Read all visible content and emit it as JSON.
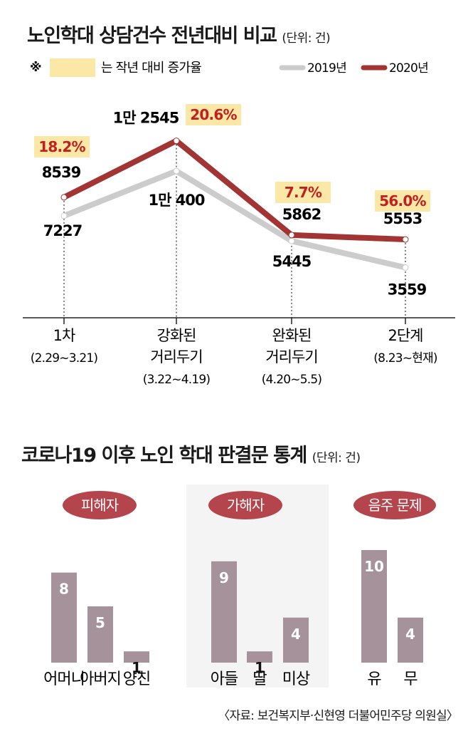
{
  "chart_data": [
    {
      "type": "line",
      "title": "노인학대 상담건수 전년대비 비교",
      "unit": "(단위: 건)",
      "note_symbol": "※",
      "note_text": "는 작년 대비 증가율",
      "categories": [
        [
          "1차",
          "(2.29~3.21)"
        ],
        [
          "강화된",
          "거리두기",
          "(3.22~4.19)"
        ],
        [
          "완화된",
          "거리두기",
          "(4.20~5.5)"
        ],
        [
          "2단계",
          "(8.23~현재)"
        ]
      ],
      "series": [
        {
          "name": "2019년",
          "values": [
            7227,
            10400,
            5445,
            3559
          ],
          "labels": [
            "7227",
            "1만 400",
            "5445",
            "3559"
          ],
          "color": "#cccccc"
        },
        {
          "name": "2020년",
          "values": [
            8539,
            12545,
            5862,
            5553
          ],
          "labels": [
            "8539",
            "1만 2545",
            "5862",
            "5553"
          ],
          "color": "#a33434"
        }
      ],
      "growth": [
        "18.2%",
        "20.6%",
        "7.7%",
        "56.0%"
      ],
      "highlight_color": "#fbe7a6",
      "growth_color": "#c41f1f",
      "ylim": [
        0,
        14000
      ]
    },
    {
      "type": "bar",
      "title": "코로나19 이후 노인 학대 판결문 통계",
      "unit": "(단위: 건)",
      "groups": [
        {
          "name": "피해자",
          "categories": [
            "어머니",
            "아버지",
            "양친"
          ],
          "values": [
            8,
            5,
            1
          ]
        },
        {
          "name": "가해자",
          "categories": [
            "아들",
            "딸",
            "미상"
          ],
          "values": [
            9,
            1,
            4
          ]
        },
        {
          "name": "음주 문제",
          "categories": [
            "유",
            "무"
          ],
          "values": [
            10,
            4
          ]
        }
      ],
      "bar_color": "#a6929a",
      "badge_color": "#b5454c",
      "ylim": [
        0,
        10
      ]
    }
  ],
  "source": "〈자료: 보건복지부·신현영 더불어민주당 의원실〉"
}
